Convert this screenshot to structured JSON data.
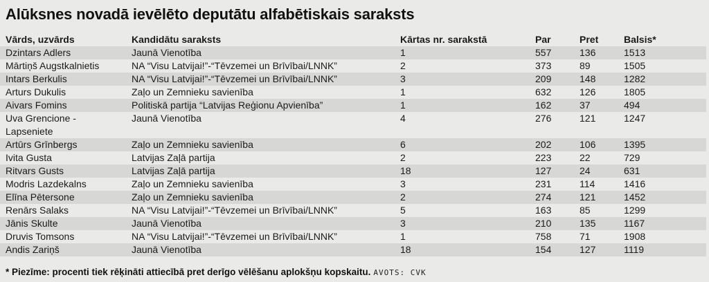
{
  "title": "Alūksnes novadā ievēlēto deputātu alfabētiskais saraksts",
  "table": {
    "columns": {
      "name": "Vārds, uzvārds",
      "list": "Kandidātu saraksts",
      "order": "Kārtas nr. sarakstā",
      "par": "Par",
      "pret": "Pret",
      "balsis": "Balsis*"
    },
    "rows": [
      {
        "name": "Dzintars Adlers",
        "list": "Jaunā Vienotība",
        "order": "1",
        "par": "557",
        "pret": "136",
        "balsis": "1513"
      },
      {
        "name": "Mārtiņš Augstkalnietis",
        "list": "NA “Visu Latvijai!”-“Tēvzemei un Brīvībai/LNNK”",
        "order": "2",
        "par": "373",
        "pret": "89",
        "balsis": "1505"
      },
      {
        "name": "Intars Berkulis",
        "list": "NA “Visu Latvijai!”-“Tēvzemei un Brīvībai/LNNK”",
        "order": "3",
        "par": "209",
        "pret": "148",
        "balsis": "1282"
      },
      {
        "name": "Arturs Dukulis",
        "list": "Zaļo un Zemnieku savienība",
        "order": "1",
        "par": "632",
        "pret": "126",
        "balsis": "1805"
      },
      {
        "name": "Aivars Fomins",
        "list": "Politiskā partija “Latvijas Reģionu Apvienība”",
        "order": "1",
        "par": "162",
        "pret": "37",
        "balsis": "494"
      },
      {
        "name": "Uva Grencione -\nLapseniete",
        "list": "Jaunā Vienotība",
        "order": "4",
        "par": "276",
        "pret": "121",
        "balsis": "1247"
      },
      {
        "name": "Artūrs Grīnbergs",
        "list": "Zaļo un Zemnieku savienība",
        "order": "6",
        "par": "202",
        "pret": "106",
        "balsis": "1395"
      },
      {
        "name": "Ivita Gusta",
        "list": "Latvijas Zaļā partija",
        "order": "2",
        "par": "223",
        "pret": "22",
        "balsis": "729"
      },
      {
        "name": "Ritvars Gusts",
        "list": "Latvijas Zaļā partija",
        "order": "18",
        "par": "127",
        "pret": "24",
        "balsis": "631"
      },
      {
        "name": "Modris Lazdekalns",
        "list": "Zaļo un Zemnieku savienība",
        "order": "3",
        "par": "231",
        "pret": "114",
        "balsis": "1416"
      },
      {
        "name": "Elīna Pētersone",
        "list": "Zaļo un Zemnieku savienība",
        "order": "2",
        "par": "274",
        "pret": "121",
        "balsis": "1452"
      },
      {
        "name": "Renārs Salaks",
        "list": "NA “Visu Latvijai!”-“Tēvzemei un Brīvībai/LNNK”",
        "order": "5",
        "par": "163",
        "pret": "85",
        "balsis": "1299"
      },
      {
        "name": "Jānis Skulte",
        "list": "Jaunā Vienotība",
        "order": "3",
        "par": "210",
        "pret": "135",
        "balsis": "1167"
      },
      {
        "name": "Druvis Tomsons",
        "list": "NA “Visu Latvijai!”-“Tēvzemei un Brīvībai/LNNK”",
        "order": "1",
        "par": "758",
        "pret": "71",
        "balsis": "1908"
      },
      {
        "name": "Andis Zariņš",
        "list": "Jaunā Vienotība",
        "order": "18",
        "par": "154",
        "pret": "127",
        "balsis": "1119"
      }
    ]
  },
  "footer": {
    "note": "* Piezīme: procenti tiek rēķināti attiecībā pret derīgo vēlēšanu aplokšņu kopskaitu.",
    "source": "AVOTS: CVK"
  },
  "colors": {
    "background": "#eaeae8",
    "row_stripe": "#d7d7d5",
    "text": "#1a1a1a"
  }
}
